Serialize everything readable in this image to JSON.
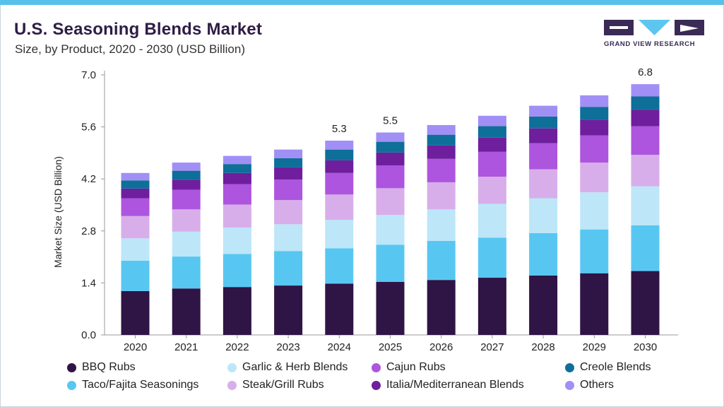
{
  "header": {
    "title": "U.S. Seasoning Blends Market",
    "subtitle": "Size, by Product, 2020 - 2030 (USD Billion)",
    "logo_text": "GRAND VIEW RESEARCH"
  },
  "colors": {
    "accent_bar": "#57c1ea",
    "title": "#2e1d45"
  },
  "chart_data": {
    "type": "bar",
    "stacked": true,
    "title": "U.S. Seasoning Blends Market",
    "subtitle": "Size, by Product, 2020 - 2030 (USD Billion)",
    "xlabel": "",
    "ylabel": "Market Size (USD Billion)",
    "ylim": [
      0,
      7.0
    ],
    "yticks": [
      "0.0",
      "1.4",
      "2.8",
      "4.2",
      "5.6",
      "7.0"
    ],
    "grid": false,
    "legend_position": "bottom",
    "categories": [
      "2020",
      "2021",
      "2022",
      "2023",
      "2024",
      "2025",
      "2026",
      "2027",
      "2028",
      "2029",
      "2030"
    ],
    "series": [
      {
        "name": "BBQ Rubs",
        "color": "#2f1446",
        "values": [
          1.18,
          1.25,
          1.29,
          1.33,
          1.38,
          1.43,
          1.48,
          1.54,
          1.6,
          1.66,
          1.72
        ]
      },
      {
        "name": "Taco/Fajita Seasonings",
        "color": "#57c7f2",
        "values": [
          0.82,
          0.86,
          0.89,
          0.93,
          0.95,
          1.0,
          1.05,
          1.08,
          1.14,
          1.18,
          1.23
        ]
      },
      {
        "name": "Garlic & Herb Blends",
        "color": "#bde6f8",
        "values": [
          0.6,
          0.67,
          0.71,
          0.72,
          0.77,
          0.8,
          0.85,
          0.91,
          0.94,
          1.0,
          1.05
        ]
      },
      {
        "name": "Steak/Grill Rubs",
        "color": "#d7aeea",
        "values": [
          0.6,
          0.6,
          0.62,
          0.65,
          0.68,
          0.72,
          0.73,
          0.73,
          0.78,
          0.8,
          0.85
        ]
      },
      {
        "name": "Cajun Rubs",
        "color": "#ad55df",
        "values": [
          0.48,
          0.53,
          0.55,
          0.55,
          0.58,
          0.61,
          0.63,
          0.67,
          0.7,
          0.73,
          0.77
        ]
      },
      {
        "name": "Italia/Mediterranean Blends",
        "color": "#6f1e9e",
        "values": [
          0.26,
          0.27,
          0.3,
          0.33,
          0.34,
          0.35,
          0.36,
          0.38,
          0.4,
          0.42,
          0.44
        ]
      },
      {
        "name": "Creole Blends",
        "color": "#0e6f99",
        "values": [
          0.22,
          0.24,
          0.24,
          0.25,
          0.29,
          0.29,
          0.29,
          0.31,
          0.32,
          0.35,
          0.36
        ]
      },
      {
        "name": "Others",
        "color": "#a18ff5",
        "values": [
          0.2,
          0.22,
          0.22,
          0.23,
          0.24,
          0.25,
          0.26,
          0.28,
          0.29,
          0.31,
          0.33
        ]
      }
    ],
    "annotations": [
      {
        "category": "2024",
        "label": "5.3"
      },
      {
        "category": "2025",
        "label": "5.5"
      },
      {
        "category": "2030",
        "label": "6.8"
      }
    ]
  }
}
